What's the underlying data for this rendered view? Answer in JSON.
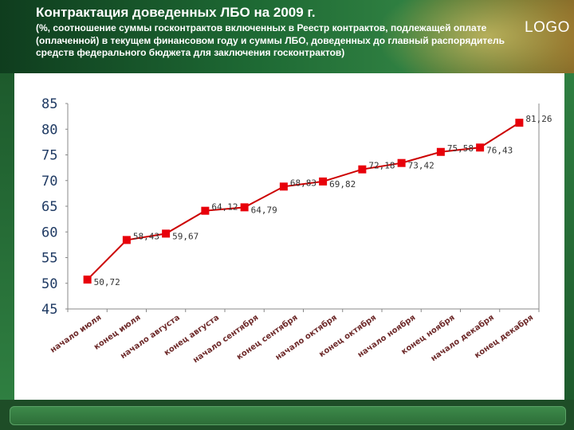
{
  "header": {
    "title": "Контрактация доведенных ЛБО на 2009 г.",
    "subtitle": "(%, соотношение суммы госконтрактов включенных в Реестр контрактов, подлежащей оплате (оплаченной) в текущем финансовом году и суммы ЛБО, доведенных до главный распорядитель средств федерального бюджета для заключения госконтрактов)",
    "logo": "LOGO"
  },
  "colors": {
    "header_dark": "#0f3d1e",
    "header_green": "#2f7f41",
    "line": "#cc0000",
    "marker": "#e8000a",
    "footer": "#1e4d27"
  },
  "chart_data": {
    "type": "line",
    "title": "",
    "xlabel": "",
    "ylabel": "",
    "categories": [
      "начало июля",
      "конец июля",
      "начало августа",
      "конец августа",
      "начало сентября",
      "конец сентября",
      "начало октября",
      "конец октября",
      "начало ноября",
      "конец ноября",
      "начало декабря",
      "конец декабря"
    ],
    "values": [
      50.72,
      58.43,
      59.67,
      64.12,
      64.79,
      68.83,
      69.82,
      72.18,
      73.42,
      75.58,
      76.43,
      81.26
    ],
    "value_labels": [
      "50,72",
      "58,43",
      "59,67",
      "64,12",
      "64,79",
      "68,83",
      "69,82",
      "72,18",
      "73,42",
      "75,58",
      "76,43",
      "81,26"
    ],
    "yticks": [
      "45",
      "50",
      "55",
      "60",
      "65",
      "70",
      "75",
      "80",
      "85"
    ],
    "ylim": [
      45,
      85
    ],
    "grid": false,
    "legend": "none"
  }
}
